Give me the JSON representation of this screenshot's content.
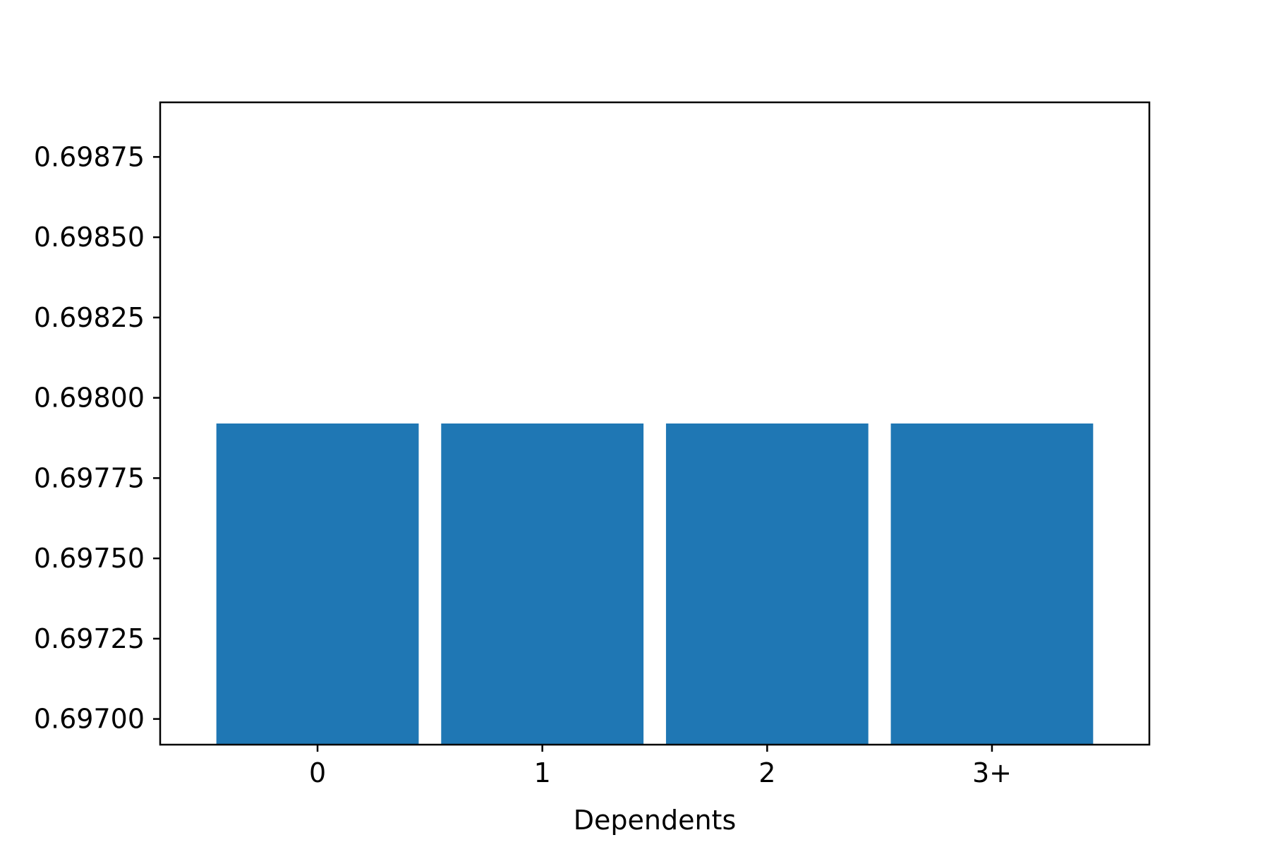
{
  "chart_data": {
    "type": "bar",
    "title": "",
    "xlabel": "Dependents",
    "ylabel": "",
    "categories": [
      "0",
      "1",
      "2",
      "3+"
    ],
    "values": [
      0.69792,
      0.69792,
      0.69792,
      0.69792
    ],
    "ylim": [
      0.69692,
      0.69892
    ],
    "yticks": [
      0.697,
      0.69725,
      0.6975,
      0.69775,
      0.698,
      0.69825,
      0.6985,
      0.69875
    ],
    "ytick_labels": [
      "0.69700",
      "0.69725",
      "0.69750",
      "0.69775",
      "0.69800",
      "0.69825",
      "0.69850",
      "0.69875"
    ],
    "bar_color": "#1f77b4",
    "grid": false,
    "legend": "none"
  }
}
